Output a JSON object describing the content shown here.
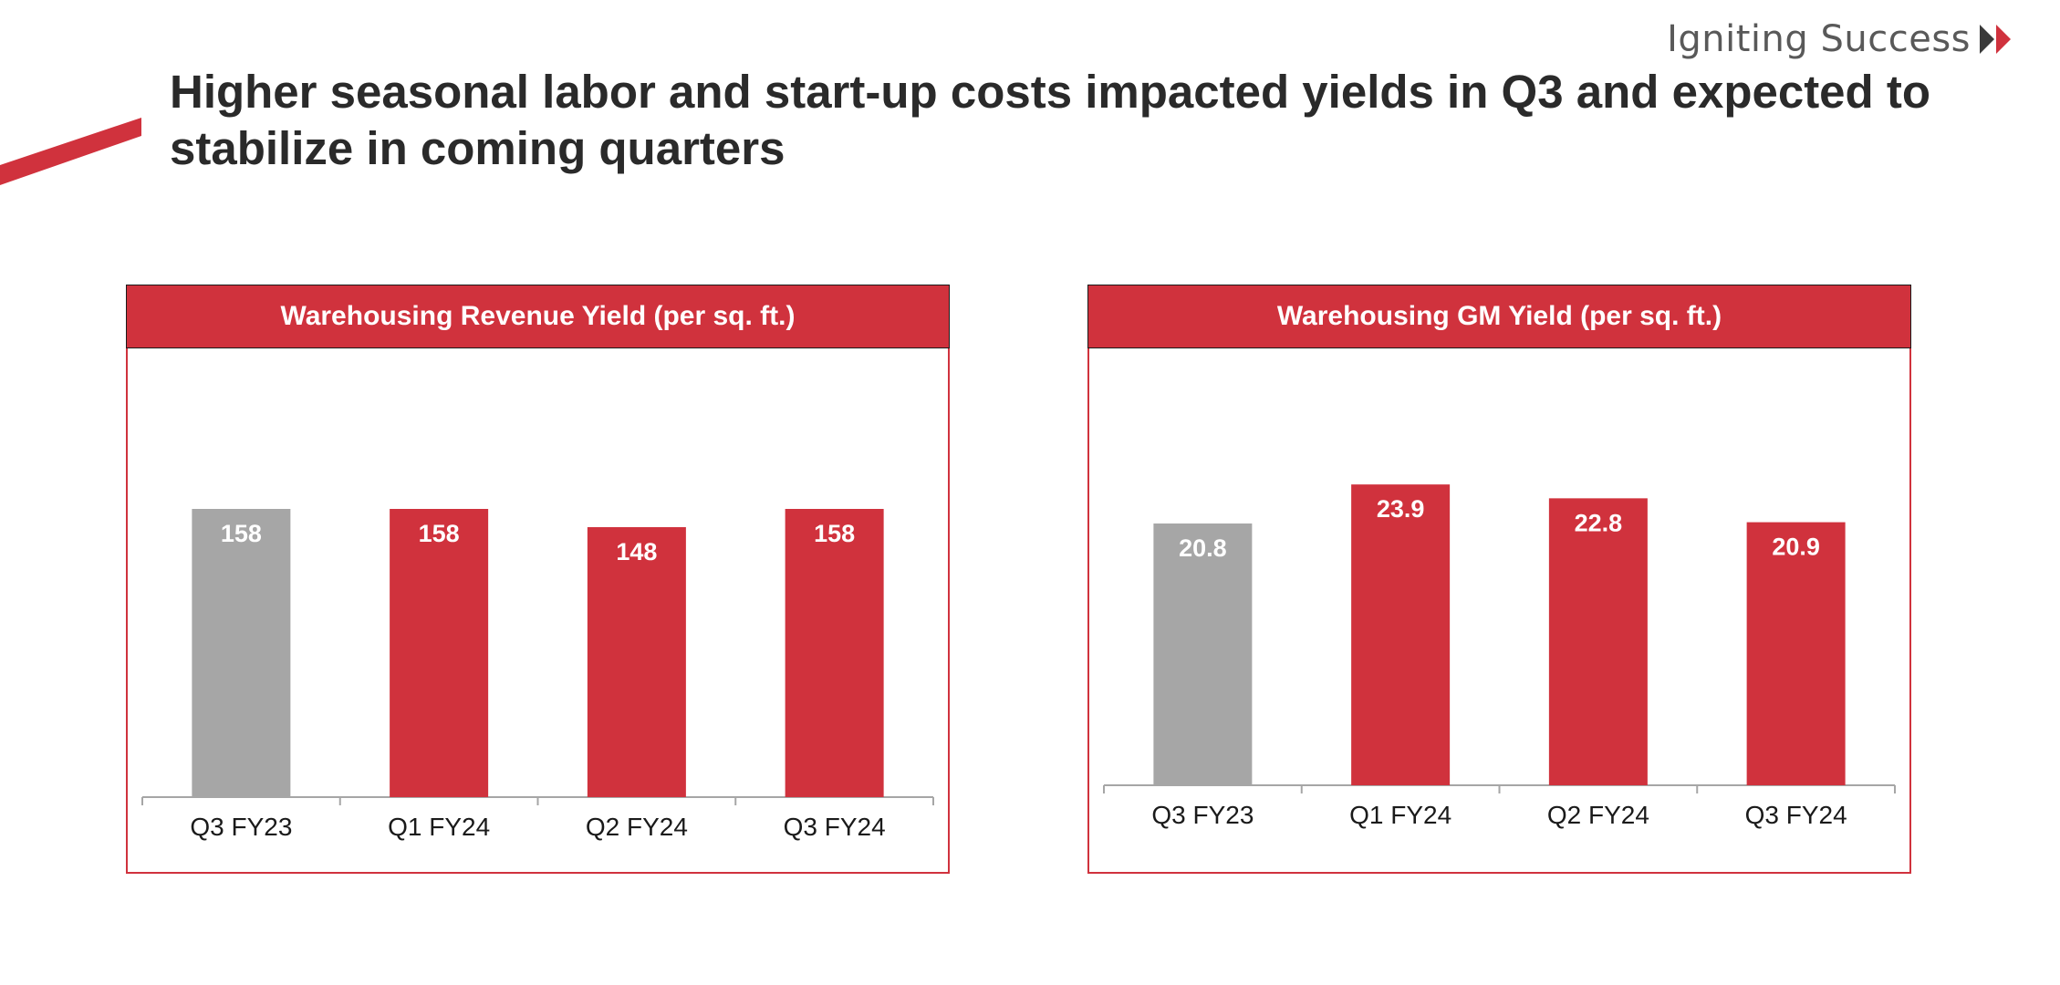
{
  "brand": {
    "tagline": "Igniting Success",
    "accent_color": "#d0323d"
  },
  "headline": "Higher seasonal labor and start-up costs impacted yields in Q3 and expected to stabilize in coming quarters",
  "colors": {
    "accent": "#d0323d",
    "baseline_bar": "#a6a6a6",
    "axis": "#a6a6a6"
  },
  "chart_data": [
    {
      "type": "bar",
      "title": "Warehousing Revenue Yield (per sq. ft.)",
      "categories": [
        "Q3 FY23",
        "Q1 FY24",
        "Q2 FY24",
        "Q3 FY24"
      ],
      "values": [
        158,
        158,
        148,
        158
      ],
      "value_labels": [
        "158",
        "158",
        "148",
        "158"
      ],
      "bar_colors": [
        "#a6a6a6",
        "#d0323d",
        "#d0323d",
        "#d0323d"
      ],
      "ylim": [
        0,
        280
      ],
      "grid": false,
      "legend": "none"
    },
    {
      "type": "bar",
      "title": "Warehousing GM Yield (per sq. ft.)",
      "categories": [
        "Q3 FY23",
        "Q1 FY24",
        "Q2 FY24",
        "Q3 FY24"
      ],
      "values": [
        20.8,
        23.9,
        22.8,
        20.9
      ],
      "value_labels": [
        "20.8",
        "23.9",
        "22.8",
        "20.9"
      ],
      "bar_colors": [
        "#a6a6a6",
        "#d0323d",
        "#d0323d",
        "#d0323d"
      ],
      "ylim": [
        0,
        40
      ],
      "grid": false,
      "legend": "none"
    }
  ]
}
